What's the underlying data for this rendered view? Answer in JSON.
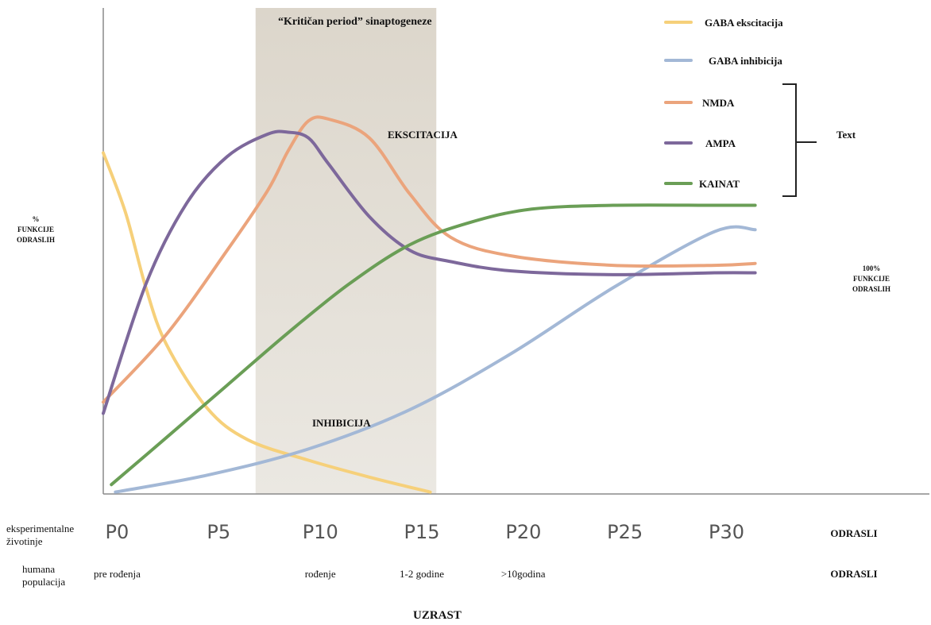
{
  "chart_data": {
    "type": "line",
    "title": "“Kritičan period” sinaptogeneze",
    "xlabel": "UZRAST",
    "ylabel_lines": [
      "%",
      "FUNKCIJE",
      "ODRASLIH"
    ],
    "right_label_lines": [
      "100%",
      "FUNKCIJE",
      "ODRASLIH"
    ],
    "region_labels": {
      "excitation": "EKSCITACIJA",
      "inhibition": "INHIBICIJA"
    },
    "bracket_label": "Text",
    "critical_period": [
      7.4,
      16.3
    ],
    "x_ticks": {
      "row_label_lines": [
        "eksperimentalne",
        "životinje"
      ],
      "labels": [
        "P0",
        "P5",
        "P10",
        "P15",
        "P20",
        "P25",
        "P30",
        "ODRASLI"
      ],
      "values": [
        0,
        5,
        10,
        15,
        20,
        25,
        30,
        36
      ]
    },
    "human_ticks": {
      "row_label_lines": [
        "humana",
        "populacija"
      ],
      "labels": [
        "pre rođenja",
        "rođenje",
        "1-2 godine",
        ">10godina",
        "ODRASLI"
      ],
      "values": [
        0,
        10,
        15,
        20,
        36
      ]
    },
    "xlim": [
      -0.1,
      36.2
    ],
    "ylim": [
      0,
      200
    ],
    "grid": false,
    "legend_position": "top-right",
    "series": [
      {
        "name": "GABA ekscitacija",
        "color": "#f6d07a",
        "x": [
          -0.1,
          1,
          2,
          3,
          5,
          7,
          10,
          13,
          16
        ],
        "y": [
          182,
          150,
          110,
          80,
          46,
          29,
          18,
          9,
          1
        ]
      },
      {
        "name": "GABA inhibicija",
        "color": "#a3b8d6",
        "x": [
          0.5,
          5,
          10,
          15,
          20,
          25,
          30,
          32
        ],
        "y": [
          1,
          10,
          24,
          45,
          75,
          110,
          140,
          141
        ]
      },
      {
        "name": "NMDA",
        "color": "#eba47c",
        "x": [
          -0.1,
          3,
          6,
          8,
          9,
          10,
          11,
          13,
          15,
          17,
          20,
          25,
          30,
          32
        ],
        "y": [
          49,
          85,
          130,
          162,
          183,
          199,
          200,
          190,
          160,
          137,
          127,
          122,
          122,
          123
        ]
      },
      {
        "name": "AMPA",
        "color": "#7d689b",
        "x": [
          -0.1,
          2,
          4,
          6,
          8,
          9,
          10,
          11,
          13,
          15,
          17,
          20,
          25,
          30,
          32
        ],
        "y": [
          43,
          112,
          155,
          180,
          192,
          193,
          190,
          176,
          148,
          130,
          124,
          119,
          117,
          118,
          118
        ]
      },
      {
        "name": "KAINAT",
        "color": "#6a9e56",
        "x": [
          0.3,
          3,
          6,
          9,
          12,
          15,
          18,
          21,
          25,
          30,
          32
        ],
        "y": [
          5,
          30,
          58,
          86,
          112,
          133,
          145,
          152,
          154,
          154,
          154
        ]
      }
    ]
  }
}
